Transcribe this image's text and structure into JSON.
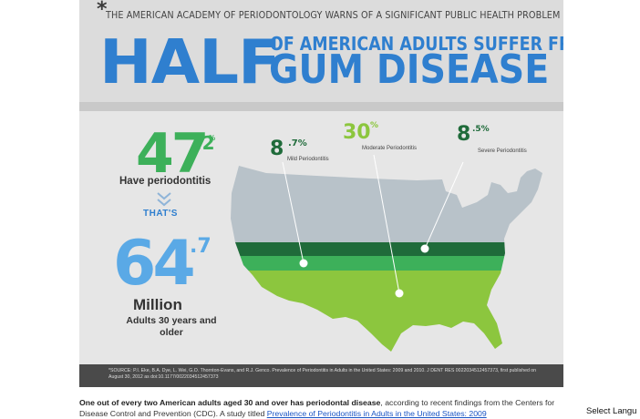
{
  "infographic": {
    "asterisk": "*",
    "warning": "THE AMERICAN ACADEMY OF PERIODONTOLOGY WARNS OF A SIGNIFICANT PUBLIC HEALTH PROBLEM",
    "headline_big": "HALF",
    "headline_line1": "OF AMERICAN ADULTS SUFFER FROM",
    "headline_line2": "GUM DISEASE",
    "prevalence": {
      "value": "47",
      "decimal": ".2",
      "unit": "%",
      "label": "Have periodontitis"
    },
    "thats": "THAT'S",
    "population": {
      "value": "64",
      "decimal": ".7",
      "unit_label": "Million",
      "desc": "Adults 30 years and older"
    },
    "callouts": {
      "mild": {
        "value": "8",
        "decimal": ".7%",
        "label": "Mild Periodontitis"
      },
      "moderate": {
        "value": "30",
        "decimal": "%",
        "label": "Moderate Periodontitis"
      },
      "severe": {
        "value": "8",
        "decimal": ".5%",
        "label": "Severe Periodontitis"
      }
    },
    "source": "*SOURCE: P.I. Eke, B.A. Dye, L. Wei, G.O. Thornton-Evans, and R.J. Genco. Prevalence of Periodontitis in Adults in the United States: 2009 and 2010. J DENT RES 0022034512457373, first published on August 30, 2012 as doi:10.1177/0022034512457373",
    "colors": {
      "blue": "#2f7fcf",
      "light_blue": "#5aa9e6",
      "green": "#3db05a",
      "dark_green": "#1f6b3a",
      "light_green": "#8cc63e",
      "map_gray": "#b8c2c9"
    }
  },
  "article": {
    "bold_lead": "One out of every two American adults aged 30 and over has periodontal disease",
    "text1": ", according to recent findings from the Centers for Disease Control and Prevention (CDC). A study titled ",
    "link_text": "Prevalence of Periodontitis in Adults in the United States: 2009"
  },
  "language_select": {
    "label": "Select Langu"
  }
}
